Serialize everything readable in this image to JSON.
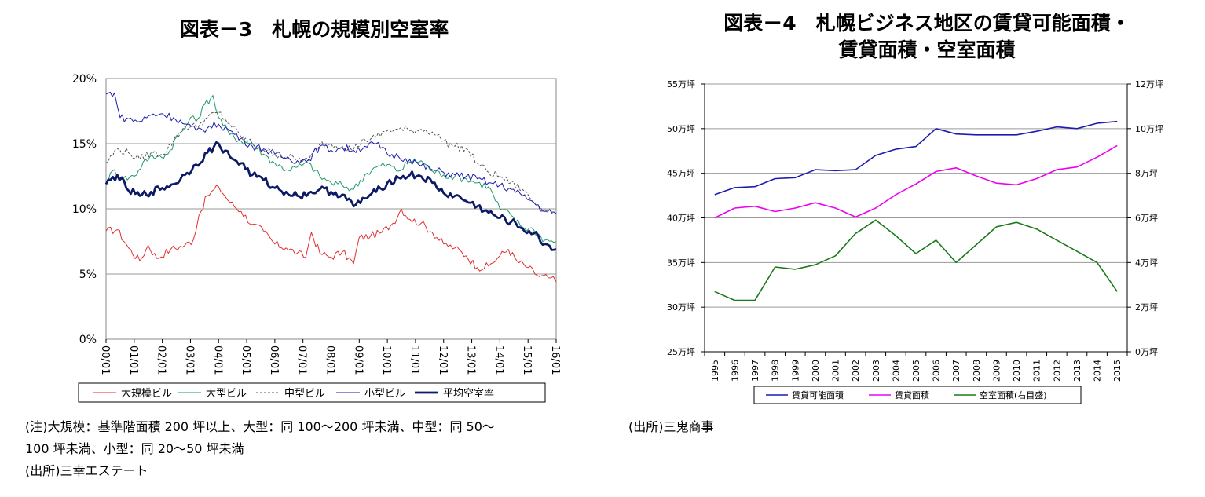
{
  "left": {
    "title": "図表－3　札幌の規模別空室率",
    "notes": [
      "(注)大規模：基準階面積 200 坪以上、大型：同 100～200 坪未満、中型：同 50～",
      "100 坪未満、小型：同 20～50 坪未満",
      "(出所)三幸エステート"
    ]
  },
  "right": {
    "title_line1": "図表－4　札幌ビジネス地区の賃貸可能面積・",
    "title_line2": "賃貸面積・空室面積",
    "source": "(出所)三鬼商事"
  },
  "chart_data": [
    {
      "type": "line",
      "title": "図表－3　札幌の規模別空室率",
      "y_ticks": [
        "0%",
        "5%",
        "10%",
        "15%",
        "20%"
      ],
      "ylim": [
        0,
        20
      ],
      "grid": true,
      "legend_position": "bottom",
      "categories": [
        "00/01",
        "01/01",
        "02/01",
        "03/01",
        "04/01",
        "05/01",
        "06/01",
        "07/01",
        "08/01",
        "09/01",
        "10/01",
        "11/01",
        "12/01",
        "13/01",
        "14/01",
        "15/01",
        "16/01"
      ],
      "series": [
        {
          "name": "大規模ビル",
          "color": "#e03030",
          "style": "thin",
          "anchors": [
            [
              0,
              8.3
            ],
            [
              0.4,
              8.4
            ],
            [
              0.8,
              7.0
            ],
            [
              1.2,
              6.0
            ],
            [
              1.5,
              7.2
            ],
            [
              1.8,
              6.2
            ],
            [
              2.3,
              6.9
            ],
            [
              2.8,
              7.2
            ],
            [
              3.1,
              7.6
            ],
            [
              3.3,
              9.5
            ],
            [
              3.6,
              11.0
            ],
            [
              4.0,
              11.7
            ],
            [
              4.4,
              10.5
            ],
            [
              4.8,
              9.8
            ],
            [
              5.2,
              8.8
            ],
            [
              5.6,
              8.3
            ],
            [
              6.0,
              7.3
            ],
            [
              6.4,
              7.0
            ],
            [
              6.8,
              6.6
            ],
            [
              7.1,
              6.3
            ],
            [
              7.3,
              8.2
            ],
            [
              7.6,
              6.6
            ],
            [
              8.0,
              6.3
            ],
            [
              8.4,
              6.7
            ],
            [
              8.8,
              5.8
            ],
            [
              9.0,
              7.8
            ],
            [
              9.4,
              7.9
            ],
            [
              9.8,
              8.2
            ],
            [
              10.2,
              8.9
            ],
            [
              10.5,
              10.0
            ],
            [
              10.8,
              9.2
            ],
            [
              11.2,
              8.9
            ],
            [
              11.6,
              8.2
            ],
            [
              12.0,
              7.3
            ],
            [
              12.4,
              7.0
            ],
            [
              12.8,
              6.4
            ],
            [
              13.2,
              5.5
            ],
            [
              13.6,
              5.6
            ],
            [
              14.0,
              6.4
            ],
            [
              14.3,
              6.9
            ],
            [
              14.6,
              6.0
            ],
            [
              15.0,
              5.5
            ],
            [
              15.4,
              4.8
            ],
            [
              15.8,
              4.7
            ],
            [
              16.0,
              4.4
            ]
          ]
        },
        {
          "name": "大型ビル",
          "color": "#1f9a68",
          "style": "thin",
          "anchors": [
            [
              0,
              12.1
            ],
            [
              0.3,
              13.0
            ],
            [
              0.6,
              12.3
            ],
            [
              1.0,
              12.5
            ],
            [
              1.4,
              13.8
            ],
            [
              1.8,
              14.0
            ],
            [
              2.2,
              14.2
            ],
            [
              2.5,
              15.5
            ],
            [
              2.8,
              16.2
            ],
            [
              3.0,
              17.0
            ],
            [
              3.2,
              16.7
            ],
            [
              3.5,
              18.0
            ],
            [
              3.8,
              18.7
            ],
            [
              4.0,
              17.0
            ],
            [
              4.4,
              15.7
            ],
            [
              4.8,
              15.2
            ],
            [
              5.2,
              15.0
            ],
            [
              5.6,
              14.2
            ],
            [
              6.0,
              13.5
            ],
            [
              6.4,
              13.0
            ],
            [
              6.8,
              13.2
            ],
            [
              7.2,
              13.5
            ],
            [
              7.6,
              12.5
            ],
            [
              8.0,
              12.0
            ],
            [
              8.4,
              11.8
            ],
            [
              8.8,
              11.5
            ],
            [
              9.2,
              12.6
            ],
            [
              9.6,
              13.2
            ],
            [
              10.0,
              13.4
            ],
            [
              10.4,
              12.9
            ],
            [
              10.8,
              13.6
            ],
            [
              11.2,
              13.7
            ],
            [
              11.6,
              12.9
            ],
            [
              12.0,
              12.6
            ],
            [
              12.4,
              12.5
            ],
            [
              12.8,
              12.3
            ],
            [
              13.2,
              12.0
            ],
            [
              13.6,
              11.7
            ],
            [
              14.0,
              10.0
            ],
            [
              14.4,
              9.5
            ],
            [
              14.8,
              8.6
            ],
            [
              15.2,
              8.4
            ],
            [
              15.6,
              7.6
            ],
            [
              16.0,
              7.5
            ]
          ]
        },
        {
          "name": "中型ビル",
          "color": "#555555",
          "style": "dashed",
          "anchors": [
            [
              0,
              13.5
            ],
            [
              0.4,
              14.6
            ],
            [
              0.8,
              14.3
            ],
            [
              1.2,
              13.8
            ],
            [
              1.6,
              14.3
            ],
            [
              2.0,
              14.2
            ],
            [
              2.4,
              15.2
            ],
            [
              2.8,
              16.3
            ],
            [
              3.2,
              16.3
            ],
            [
              3.6,
              17.0
            ],
            [
              4.0,
              17.4
            ],
            [
              4.4,
              16.5
            ],
            [
              4.8,
              15.5
            ],
            [
              5.2,
              15.0
            ],
            [
              5.6,
              14.5
            ],
            [
              6.0,
              14.2
            ],
            [
              6.4,
              14.0
            ],
            [
              6.8,
              13.8
            ],
            [
              7.2,
              13.7
            ],
            [
              7.6,
              15.0
            ],
            [
              8.0,
              15.0
            ],
            [
              8.4,
              14.8
            ],
            [
              8.8,
              14.6
            ],
            [
              9.2,
              15.3
            ],
            [
              9.6,
              15.5
            ],
            [
              10.0,
              16.0
            ],
            [
              10.4,
              16.1
            ],
            [
              10.8,
              16.0
            ],
            [
              11.2,
              16.1
            ],
            [
              11.6,
              15.9
            ],
            [
              12.0,
              15.2
            ],
            [
              12.4,
              14.8
            ],
            [
              12.8,
              14.6
            ],
            [
              13.2,
              13.5
            ],
            [
              13.6,
              12.8
            ],
            [
              14.0,
              12.5
            ],
            [
              14.4,
              12.0
            ],
            [
              14.8,
              11.5
            ],
            [
              15.2,
              10.5
            ],
            [
              15.6,
              10.0
            ],
            [
              16.0,
              9.7
            ]
          ]
        },
        {
          "name": "小型ビル",
          "color": "#1c1cb0",
          "style": "thin",
          "anchors": [
            [
              0,
              18.8
            ],
            [
              0.3,
              18.9
            ],
            [
              0.5,
              17.0
            ],
            [
              0.8,
              16.9
            ],
            [
              1.2,
              16.7
            ],
            [
              1.6,
              17.2
            ],
            [
              2.0,
              17.3
            ],
            [
              2.4,
              17.0
            ],
            [
              2.8,
              16.5
            ],
            [
              3.2,
              16.0
            ],
            [
              3.6,
              16.2
            ],
            [
              4.0,
              16.5
            ],
            [
              4.4,
              16.0
            ],
            [
              4.8,
              15.4
            ],
            [
              5.2,
              14.8
            ],
            [
              5.6,
              14.6
            ],
            [
              6.0,
              14.2
            ],
            [
              6.4,
              13.9
            ],
            [
              6.8,
              13.7
            ],
            [
              7.2,
              13.8
            ],
            [
              7.6,
              14.8
            ],
            [
              8.0,
              14.5
            ],
            [
              8.4,
              14.7
            ],
            [
              8.8,
              14.5
            ],
            [
              9.2,
              14.8
            ],
            [
              9.6,
              15.0
            ],
            [
              10.0,
              14.2
            ],
            [
              10.4,
              14.0
            ],
            [
              10.8,
              13.8
            ],
            [
              11.2,
              13.3
            ],
            [
              11.6,
              13.0
            ],
            [
              12.0,
              12.8
            ],
            [
              12.4,
              12.6
            ],
            [
              12.8,
              12.5
            ],
            [
              13.2,
              12.3
            ],
            [
              13.6,
              12.0
            ],
            [
              14.0,
              11.8
            ],
            [
              14.4,
              11.5
            ],
            [
              14.8,
              11.0
            ],
            [
              15.2,
              10.5
            ],
            [
              15.6,
              9.8
            ],
            [
              16.0,
              9.6
            ]
          ]
        },
        {
          "name": "平均空室率",
          "color": "#0d1a66",
          "style": "bold",
          "anchors": [
            [
              0,
              11.9
            ],
            [
              0.4,
              12.6
            ],
            [
              0.8,
              11.4
            ],
            [
              1.2,
              11.0
            ],
            [
              1.6,
              11.3
            ],
            [
              2.0,
              11.6
            ],
            [
              2.4,
              11.9
            ],
            [
              2.8,
              12.6
            ],
            [
              3.2,
              13.4
            ],
            [
              3.6,
              14.3
            ],
            [
              4.0,
              15.0
            ],
            [
              4.4,
              14.0
            ],
            [
              4.8,
              13.5
            ],
            [
              5.2,
              12.6
            ],
            [
              5.6,
              12.2
            ],
            [
              6.0,
              11.6
            ],
            [
              6.4,
              11.3
            ],
            [
              6.8,
              11.0
            ],
            [
              7.2,
              11.2
            ],
            [
              7.6,
              11.5
            ],
            [
              8.0,
              11.3
            ],
            [
              8.4,
              11.1
            ],
            [
              8.8,
              10.2
            ],
            [
              9.2,
              10.8
            ],
            [
              9.6,
              11.3
            ],
            [
              10.0,
              12.0
            ],
            [
              10.4,
              12.4
            ],
            [
              10.8,
              12.6
            ],
            [
              11.2,
              12.5
            ],
            [
              11.6,
              12.0
            ],
            [
              12.0,
              11.2
            ],
            [
              12.4,
              11.0
            ],
            [
              12.8,
              10.6
            ],
            [
              13.2,
              10.2
            ],
            [
              13.6,
              9.7
            ],
            [
              14.0,
              9.3
            ],
            [
              14.4,
              9.0
            ],
            [
              14.8,
              8.5
            ],
            [
              15.2,
              8.1
            ],
            [
              15.6,
              7.3
            ],
            [
              16.0,
              6.9
            ]
          ]
        }
      ]
    },
    {
      "type": "line",
      "title": "図表－4　札幌ビジネス地区の賃貸可能面積・賃貸面積・空室面積",
      "categories": [
        "1995",
        "1996",
        "1997",
        "1998",
        "1999",
        "2000",
        "2001",
        "2002",
        "2003",
        "2004",
        "2005",
        "2006",
        "2007",
        "2008",
        "2009",
        "2010",
        "2011",
        "2012",
        "2013",
        "2014",
        "2015"
      ],
      "y_left_ticks": [
        "25万坪",
        "30万坪",
        "35万坪",
        "40万坪",
        "45万坪",
        "50万坪",
        "55万坪"
      ],
      "y_left_range": [
        25,
        55
      ],
      "y_right_ticks": [
        "0万坪",
        "2万坪",
        "4万坪",
        "6万坪",
        "8万坪",
        "10万坪",
        "12万坪"
      ],
      "y_right_range": [
        0,
        12
      ],
      "grid": true,
      "legend_position": "bottom",
      "series": [
        {
          "name": "賃貸可能面積",
          "axis": "left",
          "color": "#1c1cb0",
          "values": [
            42.6,
            43.4,
            43.5,
            44.4,
            44.5,
            45.4,
            45.3,
            45.4,
            47.0,
            47.7,
            48.0,
            50.0,
            49.4,
            49.3,
            49.3,
            49.3,
            49.7,
            50.2,
            50.0,
            50.6,
            50.8
          ]
        },
        {
          "name": "賃貸面積",
          "axis": "left",
          "color": "#ee00ee",
          "values": [
            40.0,
            41.1,
            41.3,
            40.7,
            41.1,
            41.7,
            41.1,
            40.1,
            41.1,
            42.6,
            43.8,
            45.2,
            45.6,
            44.7,
            43.9,
            43.7,
            44.4,
            45.4,
            45.7,
            46.8,
            48.1
          ]
        },
        {
          "name": "空室面積(右目盛)",
          "axis": "right",
          "color": "#1a7a1a",
          "values": [
            2.7,
            2.3,
            2.3,
            3.8,
            3.7,
            3.9,
            4.3,
            5.3,
            5.9,
            5.2,
            4.4,
            5.0,
            4.0,
            4.8,
            5.6,
            5.8,
            5.5,
            5.0,
            4.5,
            4.0,
            2.7
          ]
        }
      ]
    }
  ]
}
